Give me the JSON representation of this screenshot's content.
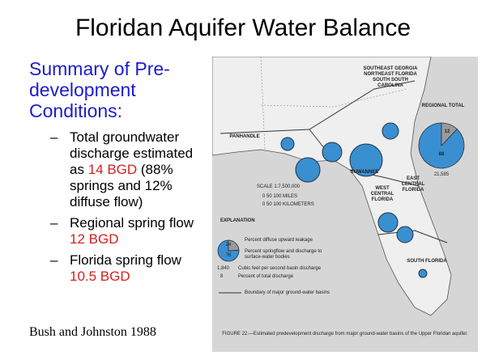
{
  "title": "Floridan Aquifer Water Balance",
  "heading": "Summary of Pre-development Conditions:",
  "bullets": [
    {
      "parts": [
        {
          "text": "Total groundwater discharge estimated as "
        },
        {
          "text": "14 BGD",
          "highlight": true
        },
        {
          "text": " (88% springs and 12% diffuse flow)"
        }
      ]
    },
    {
      "parts": [
        {
          "text": "Regional spring flow "
        },
        {
          "text": "12 BGD",
          "highlight": true
        }
      ]
    },
    {
      "parts": [
        {
          "text": "Florida spring flow "
        },
        {
          "text": "10.5 BGD",
          "highlight": true
        }
      ]
    }
  ],
  "citation": "Bush and Johnston 1988",
  "map": {
    "regions": [
      "PANHANDLE",
      "SOUTHEAST GEORGIA NORTHEAST FLORIDA SOUTH SOUTH CAROLINA",
      "SUWANNEE",
      "WEST CENTRAL FLORIDA",
      "EAST CENTRAL FLORIDA",
      "SOUTH FLORIDA"
    ],
    "regional_total": {
      "label": "REGIONAL TOTAL",
      "springs": 88,
      "diffuse": 12,
      "discharge_cfs": "21,585"
    },
    "scale": [
      "SCALE 1:7,500,000",
      "0 50 100 MILES",
      "0 50 100 KILOMETERS"
    ],
    "explanation": {
      "title": "EXPLANATION",
      "diffuse": 24,
      "springs": 76,
      "discharge_cfs": "1,840",
      "percent": 8,
      "items": [
        "Percent diffuse upward leakage",
        "Percent springflow and discharge to surface-water bodies",
        "Cubic feet per second basin discharge",
        "Percent of total discharge",
        "Boundary of major ground-water basins"
      ]
    },
    "caption": "FIGURE 22.—Estimated predevelopment discharge from major ground-water basins of the Upper Floridan aquifer."
  }
}
